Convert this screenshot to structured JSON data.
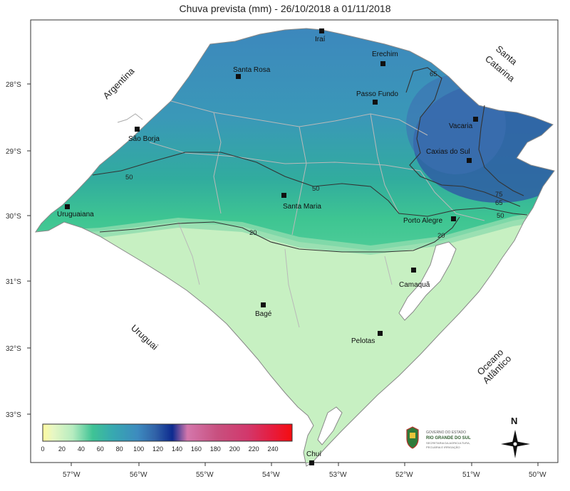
{
  "title": "Chuva prevista (mm) - 26/10/2018 a 01/11/2018",
  "lat_labels": [
    "28°S",
    "29°S",
    "30°S",
    "31°S",
    "32°S",
    "33°S"
  ],
  "lon_labels": [
    "57°W",
    "56°W",
    "55°W",
    "54°W",
    "53°W",
    "52°W",
    "51°W",
    "50°W"
  ],
  "regions": {
    "argentina": "Argentina",
    "santa_catarina_1": "Santa",
    "santa_catarina_2": "Catarina",
    "uruguai": "Uruguai",
    "oceano_1": "Oceano",
    "oceano_2": "Atlântico"
  },
  "cities": {
    "irai": "Iraí",
    "erechim": "Erechim",
    "santa_rosa": "Santa Rosa",
    "passo_fundo": "Passo Fundo",
    "sao_borja": "São Borja",
    "vacaria": "Vacaria",
    "caxias": "Caxias do Sul",
    "uruguaiana": "Uruguaiana",
    "santa_maria": "Santa Maria",
    "porto_alegre": "Porto Alegre",
    "camaqua": "Camaquã",
    "bage": "Bagé",
    "pelotas": "Pelotas",
    "chui": "Chuí"
  },
  "isolines": [
    "65",
    "50",
    "50",
    "20",
    "20",
    "75",
    "65",
    "50"
  ],
  "colorbar": {
    "ticks": [
      "0",
      "20",
      "40",
      "60",
      "80",
      "100",
      "120",
      "140",
      "160",
      "180",
      "200",
      "220",
      "240"
    ],
    "colors": [
      "#fffb9e",
      "#d4f4c4",
      "#9fe2b0",
      "#3fc395",
      "#37a9b0",
      "#3d8bbf",
      "#3163a8",
      "#0d2a8f",
      "#d477ac",
      "#c8507f",
      "#d2386c",
      "#e61c3e",
      "#f50d10"
    ]
  },
  "compass": {
    "north": "N"
  },
  "logo_text": {
    "line1": "GOVERNO DO ESTADO",
    "line2": "RIO GRANDE DO SUL",
    "line3": "SECRETARIA DA AGRICULTURA,",
    "line4": "PECUÁRIA E IRRIGAÇÃO"
  }
}
